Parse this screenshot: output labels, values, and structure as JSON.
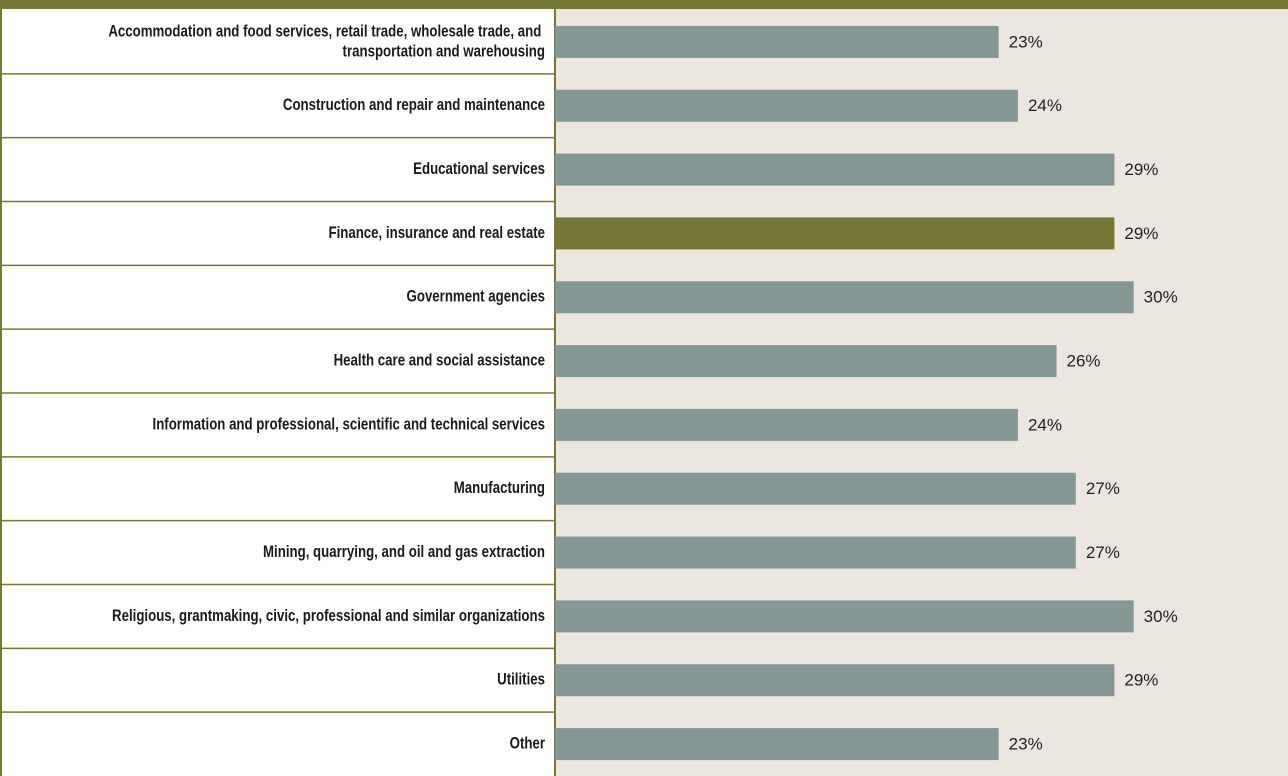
{
  "chart_data": {
    "type": "bar",
    "orientation": "horizontal",
    "categories": [
      "Accommodation and food services, retail trade, wholesale trade, and transportation and warehousing",
      "Construction and repair and maintenance",
      "Educational services",
      "Finance, insurance and real estate",
      "Government agencies",
      "Health care and social assistance",
      "Information and professional, scientific and technical services",
      "Manufacturing",
      "Mining, quarrying, and oil and gas extraction",
      "Religious, grantmaking, civic, professional and similar organizations",
      "Utilities",
      "Other"
    ],
    "values": [
      23,
      24,
      29,
      29,
      30,
      26,
      24,
      27,
      27,
      30,
      29,
      23
    ],
    "value_labels": [
      "23%",
      "24%",
      "29%",
      "29%",
      "30%",
      "26%",
      "24%",
      "27%",
      "27%",
      "30%",
      "29%",
      "23%"
    ],
    "colors": [
      "#859794",
      "#859794",
      "#859794",
      "#76783a",
      "#859794",
      "#859794",
      "#859794",
      "#859794",
      "#859794",
      "#859794",
      "#859794",
      "#859794"
    ],
    "xlim": [
      0,
      38
    ]
  }
}
